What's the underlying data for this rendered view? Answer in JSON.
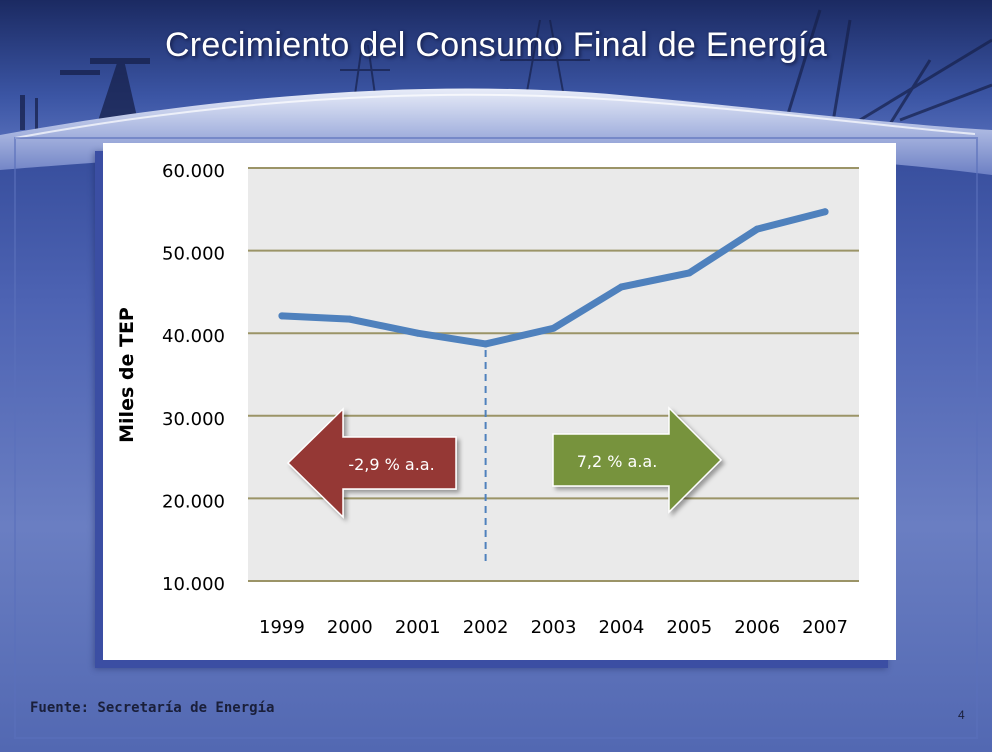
{
  "slide": {
    "title": "Crecimiento del Consumo Final de Energía",
    "source": "Fuente: Secretaría de Energía",
    "page_number": "4"
  },
  "chart_data": {
    "type": "line",
    "title": "",
    "xlabel": "",
    "ylabel": "Miles de TEP",
    "categories": [
      "1999",
      "2000",
      "2001",
      "2002",
      "2003",
      "2004",
      "2005",
      "2006",
      "2007"
    ],
    "series": [
      {
        "values": [
          42100,
          41700,
          40000,
          38700,
          40600,
          45600,
          47300,
          52600,
          54700
        ]
      }
    ],
    "ylim": [
      10000,
      60000
    ],
    "yticks": [
      10000,
      20000,
      30000,
      40000,
      50000,
      60000
    ],
    "ytick_labels": [
      "10.000",
      "20.000",
      "30.000",
      "40.000",
      "50.000",
      "60.000"
    ],
    "grid": true,
    "divider_category": "2002",
    "annotations": [
      {
        "text": "-2,9 % a.a.",
        "direction": "left",
        "color": "#953735"
      },
      {
        "text": "7,2 % a.a.",
        "direction": "right",
        "color": "#77933c"
      }
    ],
    "line_color": "#4f81bd",
    "grid_color": "#9b9467",
    "plot_bg": "#eaeaea"
  }
}
